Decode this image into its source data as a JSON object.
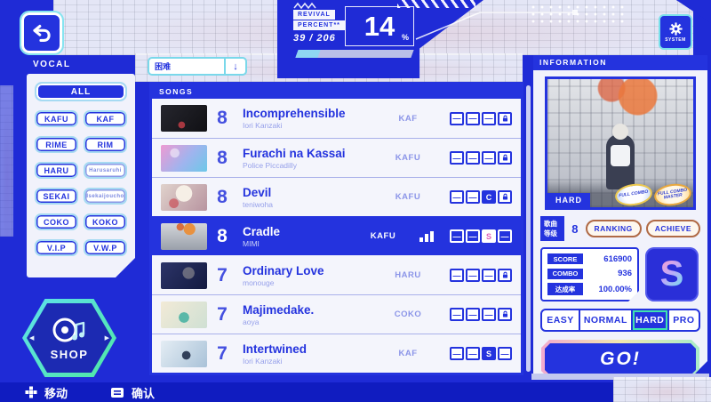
{
  "header": {
    "revival_line1": "REVIVAL",
    "revival_line2": "PERCENT**",
    "progress_count": "39 / 206",
    "percent_value": "14",
    "percent_unit": "%",
    "system_label": "SYSTEM"
  },
  "vocal": {
    "title": "VOCAL",
    "all": "ALL",
    "pairs": [
      [
        "KAFU",
        "KAF"
      ],
      [
        "RIME",
        "RIM"
      ],
      [
        "HARU",
        "Harusaruhi"
      ],
      [
        "SEKAI",
        "Isekaijoucho"
      ],
      [
        "COKO",
        "KOKO"
      ],
      [
        "V.I.P",
        "V.W.P"
      ]
    ]
  },
  "shop_label": "SHOP",
  "songs": {
    "sort_value": "困难",
    "header": "SONGS",
    "rows": [
      {
        "level": "8",
        "title": "Incomprehensible",
        "artist": "Iori Kanzaki",
        "vocal": "KAF",
        "slots": [
          "dash",
          "dash",
          "dash",
          "lock"
        ],
        "selected": false
      },
      {
        "level": "8",
        "title": "Furachi na Kassai",
        "artist": "Police Piccadilly",
        "vocal": "KAFU",
        "slots": [
          "dash",
          "dash",
          "dash",
          "lock"
        ],
        "selected": false
      },
      {
        "level": "8",
        "title": "Devil",
        "artist": "teniwoha",
        "vocal": "KAFU",
        "slots": [
          "dash",
          "dash",
          "C",
          "lock"
        ],
        "selected": false
      },
      {
        "level": "8",
        "title": "Cradle",
        "artist": "MIMI",
        "vocal": "KAFU",
        "slots": [
          "dash",
          "dash",
          "S-light",
          "dash"
        ],
        "selected": true
      },
      {
        "level": "7",
        "title": "Ordinary Love",
        "artist": "monouge",
        "vocal": "HARU",
        "slots": [
          "dash",
          "dash",
          "dash",
          "lock"
        ],
        "selected": false
      },
      {
        "level": "7",
        "title": "Majimedake.",
        "artist": "aoya",
        "vocal": "COKO",
        "slots": [
          "dash",
          "dash",
          "dash",
          "lock"
        ],
        "selected": false
      },
      {
        "level": "7",
        "title": "Intertwined",
        "artist": "Iori Kanzaki",
        "vocal": "KAF",
        "slots": [
          "dash",
          "dash",
          "S",
          "dash"
        ],
        "selected": false
      }
    ]
  },
  "info": {
    "header": "INFORMATION",
    "difficulty_tag": "HARD",
    "badge1": "FULL COMBO",
    "badge2": "FULL COMBO MASTER",
    "level_label": "歌曲等级",
    "level_value": "8",
    "ranking": "RANKING",
    "achieve": "ACHIEVE",
    "score_label": "SCORE",
    "score_value": "616900",
    "combo_label": "COMBO",
    "combo_value": "936",
    "rate_label": "达成率",
    "rate_value": "100.00%",
    "rank": "S",
    "tabs": [
      "EASY",
      "NORMAL",
      "HARD",
      "PRO"
    ],
    "active_tab": "HARD",
    "go": "GO!"
  },
  "footer": {
    "move": "移动",
    "confirm": "确认"
  },
  "colors": {
    "primary_blue": "#2433de",
    "light_cyan": "#8fd6f2",
    "active_tab_green": "#3fe3ae"
  }
}
